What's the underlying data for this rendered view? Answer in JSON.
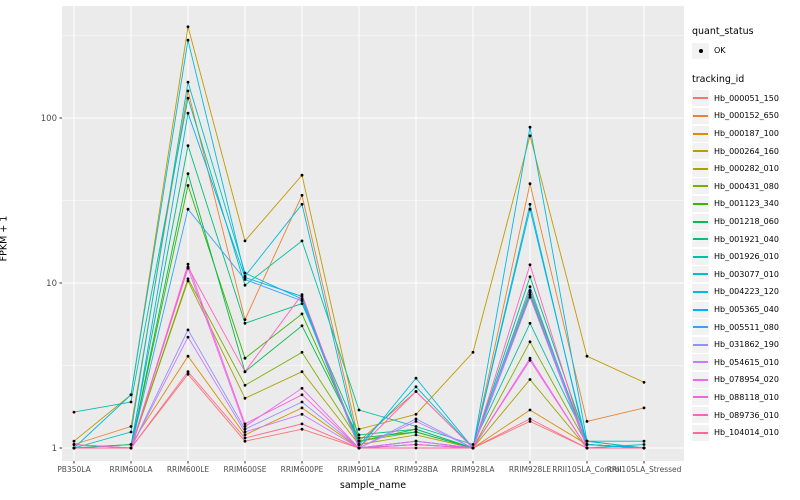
{
  "figure": {
    "y_axis_title": "FPKM + 1",
    "x_axis_title": "sample_name",
    "legend": {
      "quant_status_title": "quant_status",
      "quant_status_items": [
        {
          "label": "OK",
          "symbol": "point"
        }
      ],
      "tracking_id_title": "tracking_id"
    }
  },
  "colors": {
    "panel_bg": "#EBEBEB",
    "grid_major": "#FFFFFF",
    "grid_minor": "#F7F7F7",
    "axis_text": "#4D4D4D",
    "tick_mark": "#333333",
    "point": "#000000",
    "legend_key_bg": "#F2F2F2"
  },
  "chart_data": {
    "type": "line",
    "title": "",
    "xlabel": "sample_name",
    "ylabel": "FPKM + 1",
    "y_scale": "log10",
    "y_ticks": [
      1,
      10,
      100
    ],
    "ylim": [
      0.85,
      465
    ],
    "grid": true,
    "legend_position": "right",
    "point_marker": "black dot (quant_status OK)",
    "x_categories": [
      "PB350LA",
      "RRIM600LA",
      "RRIM600LE",
      "RRIM600SE",
      "RRIM600PE",
      "RRIM901LA",
      "RRIM928BA",
      "RRIM928LA",
      "RRIM928LE",
      "RRII105LA_Control",
      "RRII105LA_Stressed"
    ],
    "series": [
      {
        "name": "Hb_000051_150",
        "color": "#F8766D",
        "values": [
          1.0,
          1.0,
          2.8,
          1.1,
          1.3,
          1.0,
          1.05,
          1.0,
          1.45,
          1.0,
          1.0
        ]
      },
      {
        "name": "Hb_000152_650",
        "color": "#EA8331",
        "values": [
          1.05,
          1.35,
          146,
          6.0,
          34,
          1.1,
          2.2,
          1.0,
          40,
          1.45,
          1.75
        ]
      },
      {
        "name": "Hb_000187_100",
        "color": "#D89000",
        "values": [
          1.0,
          1.05,
          3.6,
          1.2,
          1.75,
          1.0,
          1.1,
          1.0,
          1.7,
          1.05,
          1.0
        ]
      },
      {
        "name": "Hb_000264_160",
        "color": "#C09B00",
        "values": [
          1.1,
          2.1,
          357,
          18,
          45,
          1.3,
          1.6,
          3.8,
          78,
          3.6,
          2.5
        ]
      },
      {
        "name": "Hb_000282_010",
        "color": "#A3A500",
        "values": [
          1.0,
          1.0,
          10.3,
          2.0,
          2.9,
          1.05,
          1.2,
          1.0,
          2.6,
          1.0,
          1.0
        ]
      },
      {
        "name": "Hb_000431_080",
        "color": "#7CAE00",
        "values": [
          1.0,
          1.0,
          10.6,
          2.4,
          3.8,
          1.1,
          1.25,
          1.0,
          4.4,
          1.05,
          1.0
        ]
      },
      {
        "name": "Hb_001123_340",
        "color": "#39B600",
        "values": [
          1.0,
          1.0,
          39,
          3.5,
          6.5,
          1.1,
          1.3,
          1.0,
          9.0,
          1.05,
          1.0
        ]
      },
      {
        "name": "Hb_001218_060",
        "color": "#00BB4E",
        "values": [
          1.05,
          1.0,
          46,
          2.9,
          5.5,
          1.15,
          1.25,
          1.0,
          8.5,
          1.0,
          1.0
        ]
      },
      {
        "name": "Hb_001921_040",
        "color": "#00BF7D",
        "values": [
          1.0,
          1.05,
          68,
          5.7,
          7.5,
          1.2,
          1.3,
          1.0,
          10.9,
          1.1,
          1.0
        ]
      },
      {
        "name": "Hb_001926_010",
        "color": "#00C1A3",
        "values": [
          1.65,
          1.9,
          132,
          9.7,
          18,
          1.7,
          1.35,
          1.05,
          5.7,
          1.1,
          1.1
        ]
      },
      {
        "name": "Hb_003077_010",
        "color": "#00BFC4",
        "values": [
          1.0,
          1.25,
          165,
          11.5,
          8.0,
          1.05,
          2.35,
          1.0,
          30,
          1.0,
          1.05
        ]
      },
      {
        "name": "Hb_004223_120",
        "color": "#00BAE0",
        "values": [
          1.0,
          2.1,
          296,
          11.0,
          30,
          1.0,
          2.65,
          1.0,
          88,
          1.1,
          1.0
        ]
      },
      {
        "name": "Hb_005365_040",
        "color": "#00B0F6",
        "values": [
          1.0,
          1.0,
          107,
          10.8,
          8.3,
          1.0,
          1.1,
          1.0,
          28,
          1.05,
          1.0
        ]
      },
      {
        "name": "Hb_005511_080",
        "color": "#35A2FF",
        "values": [
          1.0,
          1.0,
          28,
          10.5,
          7.8,
          1.0,
          1.05,
          1.0,
          9.5,
          1.0,
          1.0
        ]
      },
      {
        "name": "Hb_031862_190",
        "color": "#9590FF",
        "values": [
          1.0,
          1.0,
          5.2,
          1.3,
          1.9,
          1.0,
          1.5,
          1.0,
          8.8,
          1.0,
          1.0
        ]
      },
      {
        "name": "Hb_054615_010",
        "color": "#C77CFF",
        "values": [
          1.0,
          1.0,
          4.7,
          1.25,
          1.6,
          1.0,
          1.45,
          1.0,
          8.2,
          1.0,
          1.0
        ]
      },
      {
        "name": "Hb_078954_020",
        "color": "#E76BF3",
        "values": [
          1.0,
          1.0,
          12.3,
          1.35,
          2.3,
          1.0,
          1.1,
          1.0,
          3.5,
          1.0,
          1.0
        ]
      },
      {
        "name": "Hb_088118_010",
        "color": "#FA62DB",
        "values": [
          1.05,
          1.0,
          13.0,
          1.4,
          2.1,
          1.0,
          1.05,
          1.0,
          3.4,
          1.0,
          1.0
        ]
      },
      {
        "name": "Hb_089736_010",
        "color": "#FF61C3",
        "values": [
          1.0,
          1.0,
          12.5,
          2.9,
          8.5,
          1.0,
          2.2,
          1.0,
          12.9,
          1.0,
          1.0
        ]
      },
      {
        "name": "Hb_104014_010",
        "color": "#FF6A98",
        "values": [
          1.0,
          1.0,
          2.9,
          1.15,
          1.4,
          1.0,
          1.0,
          1.0,
          1.5,
          1.0,
          1.0
        ]
      }
    ]
  }
}
